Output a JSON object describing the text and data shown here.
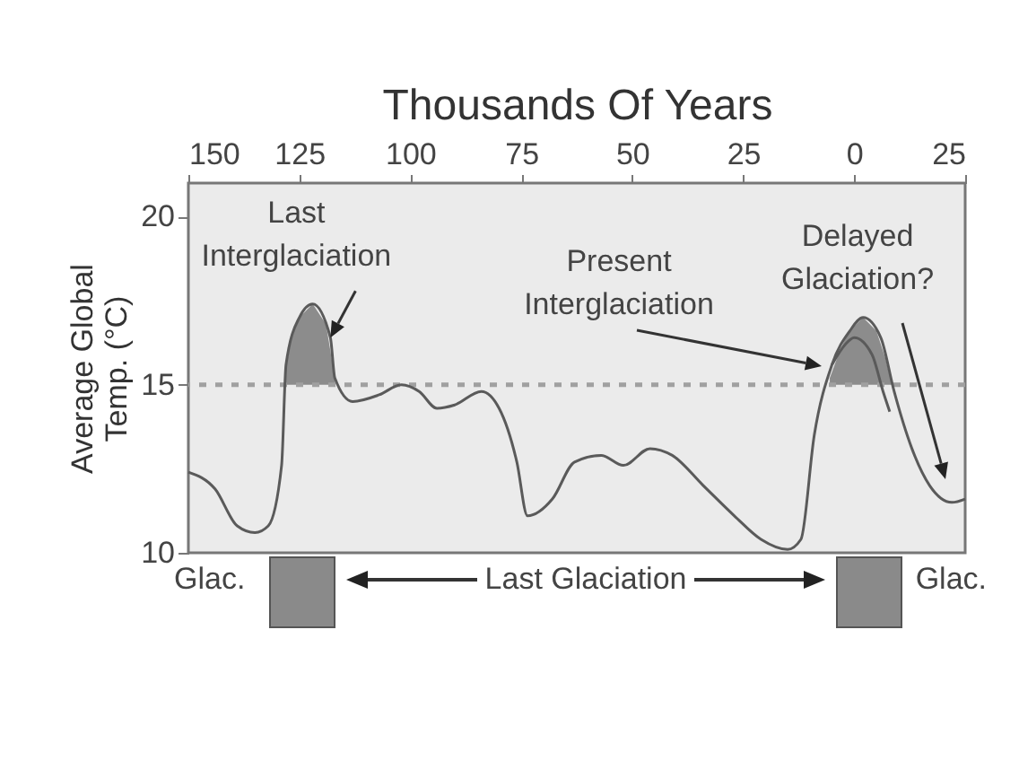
{
  "chart_data": {
    "type": "line",
    "xlabel": "Thousands Of Years",
    "ylabel": "Average Global Temp. (°C)",
    "xlim": [
      -150,
      25
    ],
    "xticks": [
      {
        "value": -150,
        "label": "150"
      },
      {
        "value": -125,
        "label": "125"
      },
      {
        "value": -100,
        "label": "100"
      },
      {
        "value": -75,
        "label": "75"
      },
      {
        "value": -50,
        "label": "50"
      },
      {
        "value": -25,
        "label": "25"
      },
      0,
      25
    ],
    "ylim": [
      10,
      21
    ],
    "yticks": [
      10,
      15,
      20
    ],
    "grid": false,
    "series": [
      {
        "type": "area",
        "color": "#8c8c8c",
        "x": [
          -128.3,
          -127,
          -125,
          -122,
          -119,
          -117
        ],
        "values": [
          15.2,
          16.3,
          17.0,
          17.4,
          16.8,
          15.2
        ]
      },
      {
        "type": "area",
        "color": "#8c8c8c",
        "x": [
          -5.5,
          -3,
          -1,
          2,
          5,
          7,
          8.5
        ],
        "values": [
          15.2,
          16.1,
          16.6,
          17.0,
          16.6,
          15.8,
          15.0
        ]
      },
      {
        "color": "#5a5a5a",
        "x": [
          -150,
          -144,
          -139,
          -135,
          -132,
          -129,
          -128,
          -125,
          -122,
          -118,
          -117,
          -113,
          -107,
          -102,
          -98,
          -94,
          -90,
          -84,
          -80,
          -76,
          -73.6,
          -68,
          -63,
          -57,
          -52,
          -46,
          -41,
          -34,
          -27,
          -21,
          -15,
          -12,
          -9,
          -5,
          -1,
          2,
          6,
          9,
          13,
          17,
          22,
          25
        ],
        "values": [
          12.4,
          11.9,
          10.8,
          10.6,
          10.8,
          12.6,
          15.6,
          17.0,
          17.4,
          16.4,
          15.2,
          14.5,
          14.7,
          15.0,
          14.8,
          14.3,
          14.4,
          14.8,
          14.3,
          12.7,
          11.1,
          11.6,
          12.7,
          12.9,
          12.6,
          13.1,
          12.9,
          12.0,
          11.1,
          10.4,
          10.1,
          10.4,
          13.5,
          15.6,
          16.6,
          17.0,
          16.4,
          14.8,
          13.1,
          12.0,
          11.5,
          11.6
        ]
      },
      {
        "type": "line",
        "color": "#5a5a5a",
        "x": [
          -5,
          -2,
          0,
          4,
          6.5,
          8
        ],
        "values": [
          15.6,
          16.2,
          16.4,
          15.9,
          14.8,
          14.2
        ]
      }
    ],
    "ref_lines": [
      {
        "axis": "y",
        "value": 15,
        "color": "#a0a0a0",
        "line_style": "dashed"
      }
    ],
    "annotations": [
      {
        "text": "Last Interglaciation",
        "x": -118,
        "y": 16.4
      },
      "Present Interglaciation",
      "Delayed Glaciation?",
      "Glac.",
      "Last Glaciation",
      "Glac."
    ]
  }
}
